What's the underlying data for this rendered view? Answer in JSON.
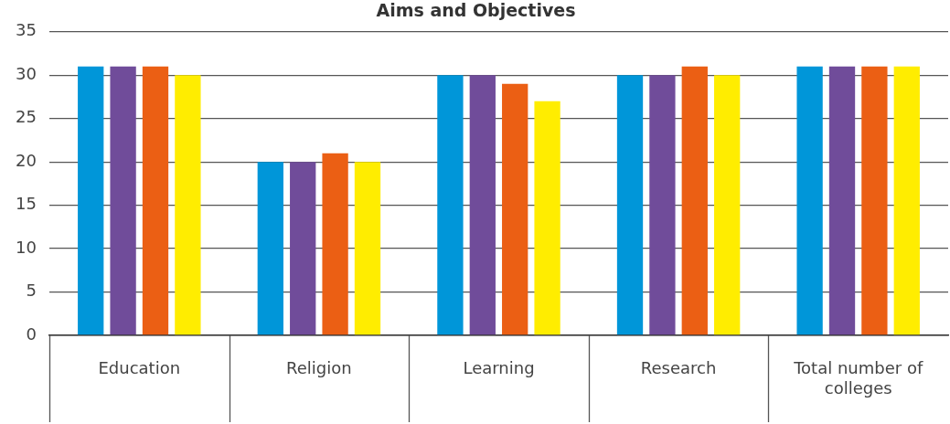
{
  "chart_data": {
    "type": "bar",
    "title": "Aims and Objectives",
    "categories": [
      "Education",
      "Religion",
      "Learning",
      "Research",
      "Total number of colleges"
    ],
    "series": [
      {
        "color": "#0096d9",
        "values": [
          31,
          20,
          30,
          30,
          31
        ]
      },
      {
        "color": "#704c9a",
        "values": [
          31,
          20,
          30,
          30,
          31
        ]
      },
      {
        "color": "#eb5f14",
        "values": [
          31,
          21,
          29,
          31,
          31
        ]
      },
      {
        "color": "#ffed00",
        "values": [
          30,
          20,
          27,
          30,
          31
        ]
      }
    ],
    "ylim": [
      0,
      35
    ],
    "yticks": [
      0,
      5,
      10,
      15,
      20,
      25,
      30,
      35
    ],
    "grid": "y"
  }
}
